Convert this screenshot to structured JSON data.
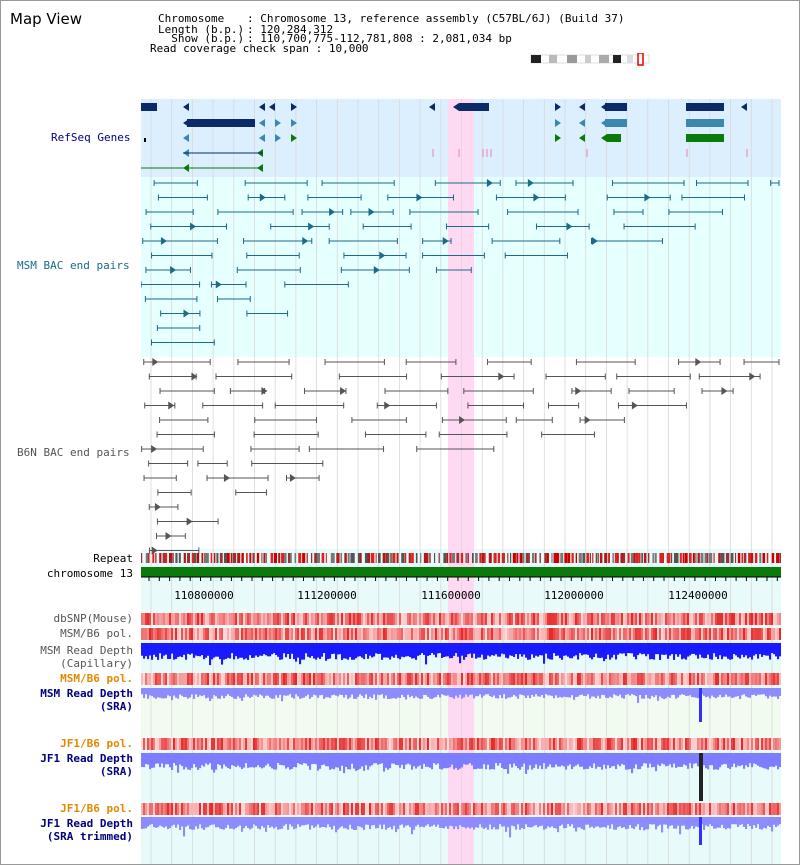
{
  "page": {
    "title": "Map View"
  },
  "header": {
    "chromosome_label": "Chromosome",
    "chromosome_value": ": Chromosome 13, reference assembly (C57BL/6J) (Build 37)",
    "length_label": "Length (b.p.)",
    "length_value": ": 120,284,312",
    "show_label": "  Show (b.p.)",
    "show_value": ": 110,700,775-112,781,808 : 2,081,034 bp",
    "span_label": "Read coverage check span",
    "span_value": ": 10,000"
  },
  "tracks": {
    "refseq": "RefSeq Genes",
    "msm_bac": "MSM BAC end pairs",
    "b6n_bac": "B6N BAC end pairs",
    "repeat": "Repeat",
    "chromosome": "chromosome 13",
    "dbsnp": "dbSNP(Mouse)",
    "msm_b6_pol": "MSM/B6 pol.",
    "msm_depth_cap_1": "MSM Read Depth",
    "msm_depth_cap_2": "(Capillary)",
    "msm_b6_pol2": "MSM/B6 pol.",
    "msm_depth_sra_1": "MSM Read Depth",
    "msm_depth_sra_2": "(SRA)",
    "jf1_b6_pol": "JF1/B6 pol.",
    "jf1_depth_sra_1": "JF1 Read Depth",
    "jf1_depth_sra_2": "(SRA)",
    "jf1_b6_pol2": "JF1/B6 pol.",
    "jf1_depth_trim_1": "JF1 Read Depth",
    "jf1_depth_trim_2": "(SRA trimmed)"
  },
  "axis": {
    "ticks": [
      "110800000",
      "111200000",
      "111600000",
      "112000000",
      "112400000"
    ]
  },
  "colors": {
    "refseq_band": "#dcefff",
    "msm_band": "#e6ffff",
    "highlight": "#ffd8f2",
    "chromosome_bar": "#0a7a0a",
    "gene_dark": "#0a2a6a",
    "gene_teal": "#3a88b0",
    "gene_green": "#0a7a0a",
    "msm_line": "#1a6a8a",
    "b6n_line": "#555555",
    "label_navy": "#000080",
    "label_teal": "#1a6a8a",
    "label_gray": "#555555",
    "label_orange": "#e08a00"
  }
}
